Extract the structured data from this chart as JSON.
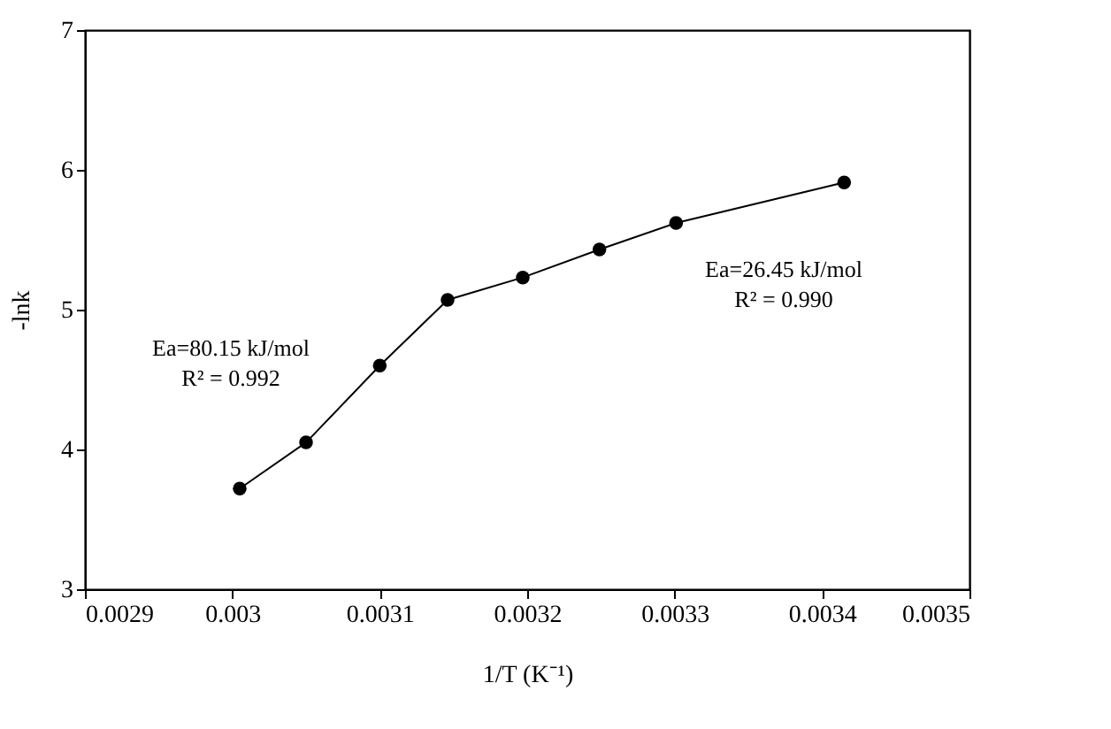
{
  "chart_data": {
    "type": "line",
    "xlabel": "1/T (K⁻¹)",
    "ylabel": "-lnk",
    "x": [
      0.003005,
      0.00305,
      0.0031,
      0.003146,
      0.003197,
      0.003249,
      0.003301,
      0.003415
    ],
    "series": [
      {
        "color": "#000000",
        "values": [
          3.72,
          4.05,
          4.6,
          5.07,
          5.23,
          5.43,
          5.62,
          5.91
        ]
      }
    ],
    "marker": "circle",
    "line_style": "solid",
    "grid": false,
    "xlim": [
      0.0029,
      0.0035
    ],
    "xticks": [
      0.0029,
      0.003,
      0.0031,
      0.0032,
      0.0033,
      0.0034,
      0.0035
    ],
    "ylim": [
      3,
      7
    ],
    "yticks": [
      3,
      4,
      5,
      6,
      7
    ],
    "annotations": [
      "Ea=80.15 kJ/mol\nR² = 0.992",
      "Ea=26.45 kJ/mol\nR² = 0.990"
    ]
  }
}
